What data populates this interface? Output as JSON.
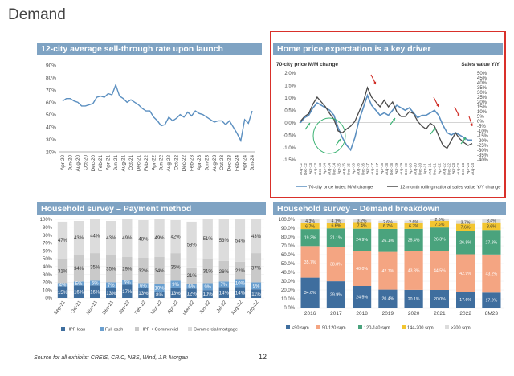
{
  "page": {
    "title": "Demand",
    "source": "Source for all exhibits: CREIS, CRIC, NBS, Wind, J.P. Morgan",
    "page_number": "12"
  },
  "colors": {
    "header_bg": "#7fa3c3",
    "frame_red": "#d9302a",
    "line_blue": "#5b8fc0",
    "dark_blue": "#3f6e9e",
    "light_blue": "#6a9fcf",
    "gray": "#c9c9c9",
    "light_gray": "#dcdcdc",
    "line_dark": "#4a4a4a",
    "orange_salmon": "#f4a582",
    "yellow": "#f2c530",
    "green_arrow": "#3bb273",
    "red_arrow": "#cf2b24"
  },
  "chart_data": [
    {
      "id": "sellthrough",
      "type": "line",
      "title": "12-city average sell-through rate upon launch",
      "x": [
        "Apr-20",
        "May-20",
        "Jun-20",
        "Jul-20",
        "Aug-20",
        "Sep-20",
        "Oct-20",
        "Nov-20",
        "Dec-20",
        "Jan-21",
        "Feb-21",
        "Mar-21",
        "Apr-21",
        "May-21",
        "Jun-21",
        "Jul-21",
        "Aug-21",
        "Sep-21",
        "Oct-21",
        "Nov-21",
        "Dec-21",
        "Jan-22",
        "Feb-22",
        "Mar-22",
        "Apr-22",
        "May-22",
        "Jun-22",
        "Jul-22",
        "Aug-22",
        "Sep-22",
        "Oct-22",
        "Nov-22",
        "Dec-22",
        "Jan-23",
        "Feb-23",
        "Mar-23",
        "Apr-23",
        "May-23",
        "Jun-23",
        "Jul-23",
        "Aug-23",
        "Sep-23",
        "Oct-23",
        "Nov-23",
        "Dec-23",
        "Jan-24",
        "Feb-24",
        "Mar-24",
        "Apr-24",
        "May-24",
        "Jun-24"
      ],
      "x_tick_labels": [
        "Apr-20",
        "Jun-20",
        "Aug-20",
        "Oct-20",
        "Dec-20",
        "Feb-21",
        "Apr-21",
        "Jun-21",
        "Aug-21",
        "Oct-21",
        "Dec-21",
        "Feb-22",
        "Apr-22",
        "Jun-22",
        "Aug-22",
        "Oct-22",
        "Dec-22",
        "Feb-23",
        "Apr-23",
        "Jun-23",
        "Aug-23",
        "Oct-23",
        "Dec-23",
        "Feb-24",
        "Apr-24",
        "Jun-24"
      ],
      "values": [
        61,
        63,
        63,
        61,
        60,
        57,
        57,
        58,
        59,
        64,
        65,
        64,
        67,
        66,
        74,
        65,
        63,
        60,
        62,
        60,
        58,
        55,
        53,
        53,
        48,
        45,
        41,
        42,
        48,
        45,
        47,
        50,
        48,
        52,
        49,
        53,
        51,
        50,
        48,
        46,
        44,
        45,
        45,
        42,
        45,
        40,
        35,
        29,
        46,
        43,
        53
      ],
      "y_tick_labels": [
        "20%",
        "30%",
        "40%",
        "50%",
        "60%",
        "70%",
        "80%",
        "90%"
      ],
      "ylim": [
        20,
        90
      ]
    },
    {
      "id": "expectation",
      "type": "line",
      "title": "Home price expectation is a key driver",
      "left_axis_label": "70-city price M/M change",
      "right_axis_label": "Sales value Y/Y",
      "left_tick_labels": [
        "-1.5%",
        "-1.0%",
        "-0.5%",
        "0.0%",
        "0.5%",
        "1.0%",
        "1.5%",
        "2.0%"
      ],
      "right_tick_labels": [
        "-40%",
        "-35%",
        "-30%",
        "-25%",
        "-20%",
        "-15%",
        "-10%",
        "-5%",
        "0%",
        "5%",
        "10%",
        "15%",
        "20%",
        "25%",
        "30%",
        "35%",
        "40%",
        "45%",
        "50%"
      ],
      "left_ylim": [
        -1.5,
        2.0
      ],
      "right_ylim": [
        -40,
        50
      ],
      "x_tick_labels": [
        "Aug-12",
        "Dec-12",
        "Apr-13",
        "Aug-13",
        "Dec-13",
        "Apr-14",
        "Aug-14",
        "Dec-14",
        "Apr-15",
        "Aug-15",
        "Dec-15",
        "Apr-16",
        "Aug-16",
        "Dec-16",
        "Apr-17",
        "Aug-17",
        "Dec-17",
        "Apr-18",
        "Aug-18",
        "Dec-18",
        "Apr-19",
        "Aug-19",
        "Dec-19",
        "Apr-20",
        "Aug-20",
        "Dec-20",
        "Apr-21",
        "Aug-21",
        "Dec-21",
        "Apr-22",
        "Aug-22",
        "Dec-22",
        "Apr-23",
        "Aug-23",
        "Dec-23",
        "Apr-24",
        "Aug-24"
      ],
      "series": [
        {
          "name": "70-city price index M/M change",
          "axis": "left",
          "values": [
            0.0,
            0.2,
            0.3,
            0.6,
            0.8,
            0.7,
            0.6,
            0.5,
            0.3,
            -0.2,
            -0.6,
            -0.9,
            -1.1,
            -0.6,
            0.1,
            0.6,
            1.1,
            0.7,
            0.5,
            0.3,
            0.4,
            0.3,
            0.5,
            0.7,
            0.6,
            0.5,
            0.6,
            0.4,
            0.2,
            0.3,
            0.3,
            0.4,
            0.5,
            0.3,
            -0.1,
            -0.4,
            -0.5,
            -0.4,
            -0.5,
            -0.6,
            -0.7,
            -0.7
          ]
        },
        {
          "name": "12-month rolling national sales value Y/Y change",
          "axis": "right",
          "values": [
            0,
            5,
            8,
            18,
            25,
            20,
            15,
            8,
            2,
            -10,
            -12,
            -8,
            -5,
            0,
            10,
            20,
            35,
            25,
            20,
            15,
            22,
            15,
            20,
            10,
            5,
            5,
            10,
            8,
            0,
            -5,
            -8,
            -2,
            -5,
            -15,
            -25,
            -28,
            -20,
            -12,
            -18,
            -22,
            -25,
            -23
          ]
        }
      ]
    },
    {
      "id": "payment",
      "type": "bar",
      "stacked": true,
      "title": "Household survey – Payment method",
      "categories": [
        "Sep-21",
        "Oct-21",
        "Nov-21",
        "Dec-21",
        "Jan-22",
        "Feb-22",
        "Mar-22",
        "Apr-22",
        "May-22",
        "Jun-22",
        "Jul-22",
        "Aug-22",
        "Sep-22"
      ],
      "series": [
        {
          "name": "HPF loan",
          "values": [
            15,
            16,
            16,
            13,
            17,
            13,
            8,
            13,
            12,
            10,
            14,
            14,
            11
          ],
          "labels": [
            "15%",
            "16%",
            "16%",
            "13%",
            "17%",
            "13%",
            "8%",
            "13%",
            "12%",
            "10%",
            "14%",
            "14%",
            "11%"
          ]
        },
        {
          "name": "Full cash",
          "values": [
            4,
            5,
            6,
            7,
            6,
            6,
            10,
            9,
            6,
            9,
            7,
            10,
            9
          ],
          "labels": [
            "4%",
            "5%",
            "6%",
            "7%",
            "6%",
            "6%",
            "10%",
            "9%",
            "6%",
            "9%",
            "7%",
            "10%",
            "9%"
          ]
        },
        {
          "name": "HPF + Commercial",
          "values": [
            31,
            34,
            35,
            35,
            29,
            32,
            34,
            35,
            21,
            31,
            26,
            22,
            37
          ],
          "labels": [
            "31%",
            "34%",
            "35%",
            "35%",
            "29%",
            "32%",
            "34%",
            "35%",
            "21%",
            "31%",
            "26%",
            "22%",
            "37%"
          ]
        },
        {
          "name": "Commercial mortgage",
          "values": [
            47,
            43,
            44,
            43,
            49,
            48,
            49,
            42,
            58,
            51,
            53,
            54,
            43
          ],
          "labels": [
            "47%",
            "43%",
            "44%",
            "43%",
            "49%",
            "48%",
            "49%",
            "42%",
            "58%",
            "51%",
            "53%",
            "54%",
            "43%"
          ]
        }
      ],
      "y_tick_labels": [
        "0%",
        "10%",
        "20%",
        "30%",
        "40%",
        "50%",
        "60%",
        "70%",
        "80%",
        "90%",
        "100%"
      ],
      "ylim": [
        0,
        100
      ]
    },
    {
      "id": "breakdown",
      "type": "bar",
      "stacked": true,
      "title": "Household survey – Demand breakdown",
      "categories": [
        "2016",
        "2017",
        "2018",
        "2019",
        "2020",
        "2021",
        "2022",
        "8M23"
      ],
      "series": [
        {
          "name": "<90 sqm",
          "values": [
            34.0,
            29.9,
            24.5,
            20.4,
            20.1,
            20.0,
            17.6,
            17.0
          ],
          "labels": [
            "34.0%",
            "29.9%",
            "24.5%",
            "20.4%",
            "20.1%",
            "20.0%",
            "17.6%",
            "17.0%"
          ]
        },
        {
          "name": "90-120 sqm",
          "values": [
            35.7,
            38.8,
            40.0,
            42.7,
            43.8,
            44.5,
            42.9,
            43.2
          ],
          "labels": [
            "35.7%",
            "38.8%",
            "40.0%",
            "42.7%",
            "43.8%",
            "44.5%",
            "42.9%",
            "43.2%"
          ]
        },
        {
          "name": "120-140 sqm",
          "values": [
            19.3,
            21.1,
            24.9,
            26.1,
            25.4,
            26.3,
            26.8,
            27.8
          ],
          "labels": [
            "19.3%",
            "21.1%",
            "24.9%",
            "26.1%",
            "25.4%",
            "26.3%",
            "26.8%",
            "27.8%"
          ]
        },
        {
          "name": "144-200 sqm",
          "values": [
            6.7,
            6.6,
            7.4,
            6.7,
            6.7,
            7.6,
            7.6,
            8.6
          ],
          "labels": [
            "6.7%",
            "6.6%",
            "7.4%",
            "6.7%",
            "6.7%",
            "7.6%",
            "7.6%",
            "8.6%"
          ]
        },
        {
          "name": ">200 sqm",
          "values": [
            4.3,
            4.1,
            3.2,
            2.6,
            2.6,
            2.6,
            3.7,
            3.4
          ],
          "labels": [
            "4.3%",
            "4.1%",
            "3.2%",
            "2.6%",
            "2.6%",
            "2.6%",
            "3.7%",
            "3.4%"
          ]
        }
      ],
      "y_tick_labels": [
        "0.0%",
        "10.0%",
        "20.0%",
        "30.0%",
        "40.0%",
        "50.0%",
        "60.0%",
        "70.0%",
        "80.0%",
        "90.0%",
        "100.0%"
      ],
      "ylim": [
        0,
        100
      ]
    }
  ]
}
